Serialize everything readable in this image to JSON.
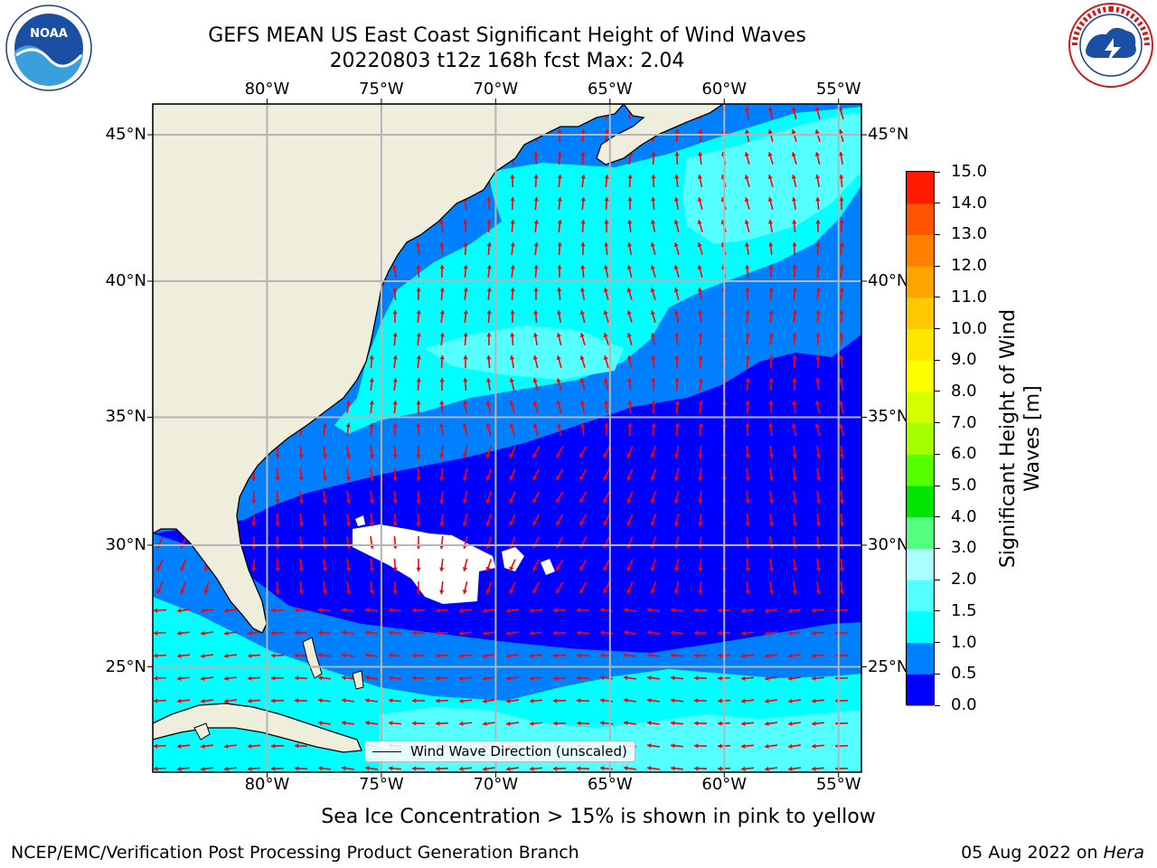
{
  "title": {
    "line1": "GEFS MEAN US East Coast Significant Height of Wind Waves",
    "line2": "20220803 t12z 168h fcst   Max: 2.04"
  },
  "logos": {
    "left": {
      "name": "noaa-logo",
      "text": "NOAA"
    },
    "right": {
      "name": "nws-logo",
      "text": "NATIONAL WEATHER SERVICE"
    }
  },
  "map": {
    "extent": {
      "lon": [
        -85,
        -54
      ],
      "lat": [
        20.5,
        46
      ]
    },
    "lon_ticks": [
      {
        "value": -80,
        "label": "80°W"
      },
      {
        "value": -75,
        "label": "75°W"
      },
      {
        "value": -70,
        "label": "70°W"
      },
      {
        "value": -65,
        "label": "65°W"
      },
      {
        "value": -60,
        "label": "60°W"
      },
      {
        "value": -55,
        "label": "55°W"
      }
    ],
    "lat_ticks": [
      {
        "value": 45,
        "label": "45°N"
      },
      {
        "value": 40,
        "label": "40°N"
      },
      {
        "value": 35,
        "label": "35°N"
      },
      {
        "value": 30,
        "label": "30°N"
      },
      {
        "value": 25,
        "label": "25°N"
      }
    ],
    "grid": true,
    "legend_label": "Wind Wave Direction (unscaled)",
    "subtitle": "Sea Ice Concentration > 15% is shown in pink to yellow",
    "colors": {
      "land": "#efeddc",
      "coast": "#000000",
      "grid": "#b5b5b5",
      "arrow": "#ff0000",
      "missing": "#ffffff"
    }
  },
  "colorbar": {
    "label": "Significant Height of Wind Waves [m]",
    "ticks": [
      "0.0",
      "0.5",
      "1.0",
      "1.5",
      "2.0",
      "3.0",
      "4.0",
      "5.0",
      "6.0",
      "7.0",
      "8.0",
      "9.0",
      "10.0",
      "11.0",
      "12.0",
      "13.0",
      "14.0",
      "15.0"
    ],
    "colors": [
      "#0000ff",
      "#0080ff",
      "#00ffff",
      "#55ffff",
      "#aaffff",
      "#55ff7f",
      "#00e600",
      "#55ff00",
      "#a6ff00",
      "#d4ff00",
      "#ffff00",
      "#ffe600",
      "#ffc800",
      "#ffa500",
      "#ff8000",
      "#ff5500",
      "#ff1a00"
    ]
  },
  "footer": {
    "left": "NCEP/EMC/Verification Post Processing Product Generation Branch",
    "right_date": "05 Aug 2022 on ",
    "right_host": "Hera"
  }
}
